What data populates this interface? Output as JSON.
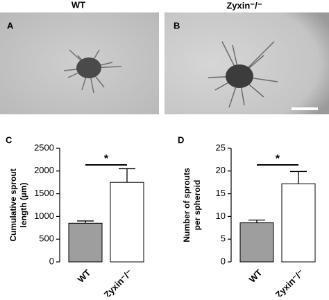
{
  "panels": [
    {
      "letter": "A",
      "label": "WT"
    },
    {
      "letter": "B",
      "label": "Zyxin⁻/⁻"
    }
  ],
  "chart_data": [
    {
      "type": "bar",
      "letter": "C",
      "ylabel": [
        "Cumulative sprout",
        "length (µm)"
      ],
      "categories": [
        "WT",
        "Zyxin⁻/⁻"
      ],
      "values": [
        850,
        1750
      ],
      "errors": [
        50,
        300
      ],
      "colors": [
        "#9e9e9e",
        "#ffffff"
      ],
      "ylim": [
        0,
        2500
      ],
      "yticks": [
        0,
        500,
        1000,
        1500,
        2000,
        2500
      ],
      "significance": "*"
    },
    {
      "type": "bar",
      "letter": "D",
      "ylabel": [
        "Number of sprouts",
        "per spheroid"
      ],
      "categories": [
        "WT",
        "Zyxin⁻/⁻"
      ],
      "values": [
        8.6,
        17.2
      ],
      "errors": [
        0.6,
        2.7
      ],
      "colors": [
        "#9e9e9e",
        "#ffffff"
      ],
      "ylim": [
        0,
        25
      ],
      "yticks": [
        0,
        5,
        10,
        15,
        20,
        25
      ],
      "significance": "*"
    }
  ]
}
